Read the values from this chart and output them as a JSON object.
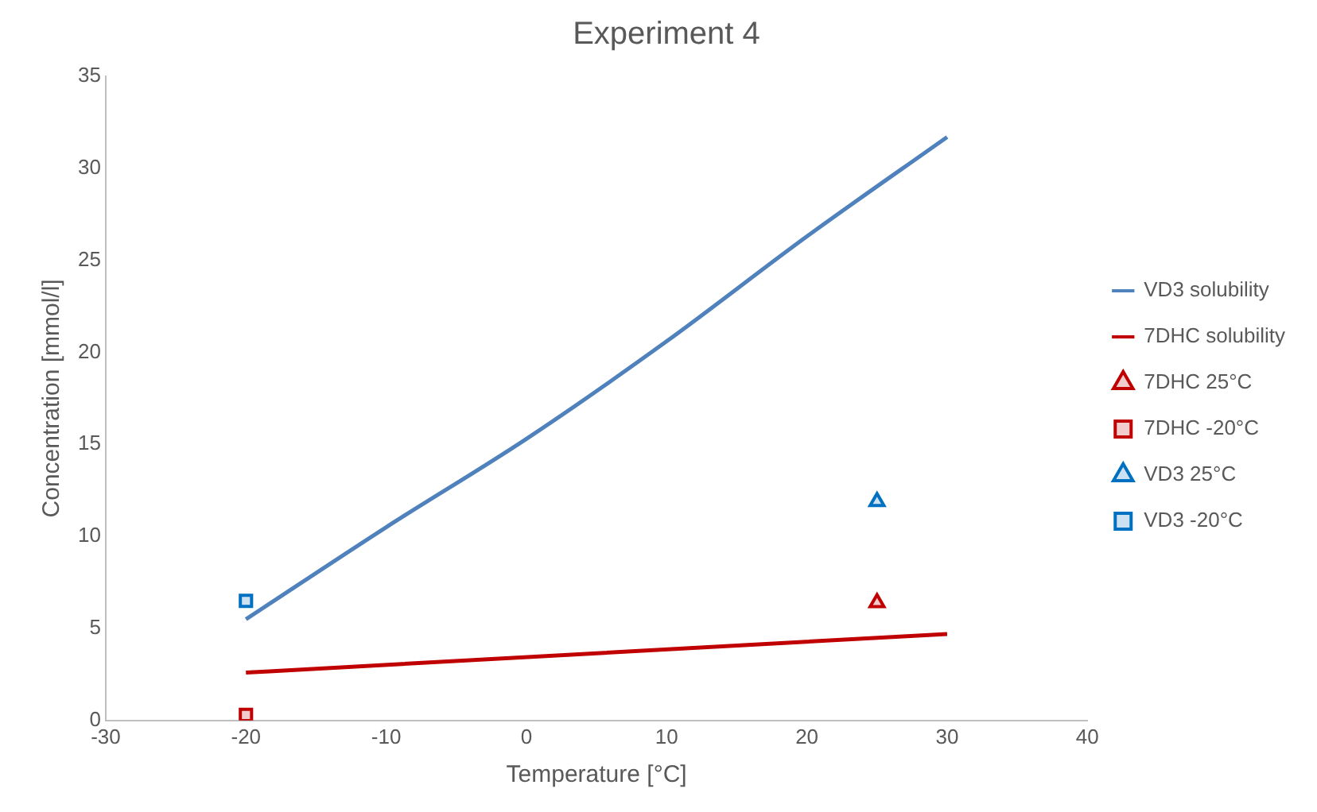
{
  "chart_data": {
    "type": "line",
    "title": "Experiment 4",
    "xlabel": "Temperature [°C]",
    "ylabel": "Concentration [mmol/l]",
    "xlim": [
      -30,
      40
    ],
    "xticks": [
      -30,
      -20,
      -10,
      0,
      10,
      20,
      30,
      40
    ],
    "ylim": [
      0,
      35
    ],
    "yticks": [
      0,
      5,
      10,
      15,
      20,
      25,
      30,
      35
    ],
    "grid": false,
    "legend": "right",
    "series": [
      {
        "name": "VD3 solubility",
        "color": "#4f81bd",
        "marker": "none",
        "x": [
          -20,
          -10,
          0,
          10,
          20,
          30
        ],
        "values": [
          5.5,
          10.5,
          15.3,
          20.6,
          26.3,
          31.7
        ]
      },
      {
        "name": "7DHC solubility",
        "color": "#c00000",
        "marker": "none",
        "x": [
          -20,
          30
        ],
        "values": [
          2.6,
          4.7
        ]
      },
      {
        "name": "7DHC 25°C",
        "type": "scatter",
        "color": "#c00000",
        "marker": "triangle",
        "x": [
          25
        ],
        "values": [
          6.4
        ]
      },
      {
        "name": "7DHC -20°C",
        "type": "scatter",
        "color": "#c00000",
        "marker": "square",
        "x": [
          -20
        ],
        "values": [
          0.3
        ]
      },
      {
        "name": "VD3 25°C",
        "type": "scatter",
        "color": "#0070c0",
        "marker": "triangle",
        "x": [
          25
        ],
        "values": [
          11.9
        ]
      },
      {
        "name": "VD3 -20°C",
        "type": "scatter",
        "color": "#0070c0",
        "marker": "square",
        "x": [
          -20
        ],
        "values": [
          6.5
        ]
      }
    ]
  }
}
